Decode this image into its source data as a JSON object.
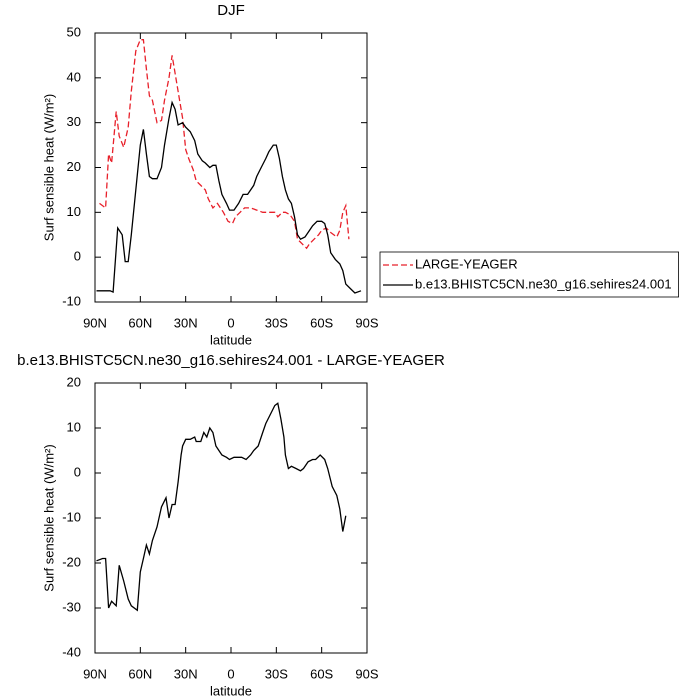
{
  "chart_data": [
    {
      "type": "line",
      "title": "DJF",
      "xlabel": "latitude",
      "ylabel": "Surf sensible heat (W/m²)",
      "xlim": [
        90,
        -90
      ],
      "xticks": [
        {
          "value": 90,
          "label": "90N"
        },
        {
          "value": 60,
          "label": "60N"
        },
        {
          "value": 30,
          "label": "30N"
        },
        0,
        {
          "value": -30,
          "label": "30S"
        },
        {
          "value": -60,
          "label": "60S"
        },
        {
          "value": -90,
          "label": "90S"
        }
      ],
      "ylim": [
        -10,
        50
      ],
      "yticks": [
        -10,
        0,
        10,
        20,
        30,
        40,
        50
      ],
      "legend": "right",
      "series": [
        {
          "name": "LARGE-YEAGER",
          "color": "#e8202a",
          "linestyle": "dashed",
          "x": [
            87,
            83,
            81,
            79,
            76,
            74,
            71,
            68,
            66,
            63,
            60,
            58,
            56,
            54,
            52,
            49,
            46,
            44,
            41,
            39,
            37,
            35,
            32,
            30,
            28,
            25,
            23,
            20,
            17,
            15,
            12,
            9,
            7,
            5,
            2,
            -1,
            -3,
            -6,
            -9,
            -13,
            -17,
            -21,
            -25,
            -29,
            -31,
            -34,
            -36,
            -39,
            -42,
            -44,
            -47,
            -50,
            -52,
            -55,
            -58,
            -60,
            -63,
            -66,
            -70,
            -72,
            -74,
            -76,
            -78
          ],
          "values": [
            12,
            11,
            23,
            21,
            32.5,
            27,
            24.5,
            29,
            37,
            46,
            48.5,
            48.5,
            42,
            36,
            35,
            30,
            30.5,
            35,
            40,
            45,
            41,
            37,
            31,
            24,
            22,
            19.5,
            17,
            16,
            15,
            13,
            11,
            12,
            11,
            10,
            8,
            7.5,
            9,
            10,
            11,
            11,
            10.5,
            10,
            10,
            10,
            9,
            10,
            10,
            9.5,
            8,
            4,
            3,
            2,
            3,
            4,
            5,
            6,
            6.5,
            5.5,
            4.5,
            6,
            10,
            11.5,
            4
          ]
        },
        {
          "name": "b.e13.BHISTC5CN.ne30_g16.sehires24.001",
          "color": "#000000",
          "linestyle": "solid",
          "x": [
            89,
            80,
            78,
            75,
            72,
            70,
            68,
            66,
            63,
            60,
            58,
            56,
            54,
            52,
            49,
            46,
            44,
            41,
            39,
            37,
            35,
            32,
            30,
            27,
            24,
            22,
            19,
            17,
            14,
            12,
            10,
            8,
            6,
            3,
            1,
            -2,
            -5,
            -8,
            -11,
            -15,
            -17,
            -20,
            -23,
            -25,
            -28,
            -30,
            -32,
            -34,
            -36,
            -38,
            -40,
            -42,
            -44,
            -46,
            -49,
            -52,
            -54,
            -57,
            -60,
            -62,
            -64,
            -66,
            -69,
            -72,
            -74,
            -76,
            -79,
            -82,
            -86
          ],
          "values": [
            -7.5,
            -7.5,
            -7.8,
            6.5,
            5,
            -1,
            -1,
            5,
            15,
            25,
            28.5,
            23,
            18,
            17.5,
            17.5,
            20,
            25,
            31,
            34.5,
            33,
            29.5,
            30,
            29,
            28,
            26,
            23,
            21.5,
            21,
            20,
            20.5,
            20.5,
            17,
            14,
            12,
            10.5,
            10.5,
            12,
            14,
            14,
            16,
            18,
            20,
            22,
            23.5,
            25,
            25,
            22,
            18,
            15,
            13,
            12,
            9,
            5,
            4,
            4.5,
            6,
            7,
            8,
            8,
            7.5,
            5,
            1,
            -0.5,
            -1.5,
            -3,
            -6,
            -7,
            -8,
            -7.5
          ]
        }
      ]
    },
    {
      "type": "line",
      "title": "b.e13.BHISTC5CN.ne30_g16.sehires24.001 - LARGE-YEAGER",
      "xlabel": "latitude",
      "ylabel": "Surf sensible heat (W/m²)",
      "xlim": [
        90,
        -90
      ],
      "xticks": [
        {
          "value": 90,
          "label": "90N"
        },
        {
          "value": 60,
          "label": "60N"
        },
        {
          "value": 30,
          "label": "30N"
        },
        0,
        {
          "value": -30,
          "label": "30S"
        },
        {
          "value": -60,
          "label": "60S"
        },
        {
          "value": -90,
          "label": "90S"
        }
      ],
      "ylim": [
        -40,
        20
      ],
      "yticks": [
        -40,
        -30,
        -20,
        -10,
        0,
        10,
        20
      ],
      "series": [
        {
          "color": "#000000",
          "linestyle": "solid",
          "x": [
            89,
            85,
            83,
            81,
            79,
            76,
            74,
            71,
            68,
            66,
            62,
            60,
            58,
            56,
            54,
            52,
            49,
            46,
            43,
            41,
            39,
            37,
            35,
            33,
            32,
            30,
            27,
            24,
            23,
            20,
            18,
            16,
            14,
            12,
            10,
            8,
            6,
            3,
            1,
            -2,
            -5,
            -7,
            -10,
            -13,
            -15,
            -18,
            -21,
            -23,
            -26,
            -29,
            -31,
            -33,
            -35,
            -36,
            -38,
            -40,
            -43,
            -46,
            -48,
            -51,
            -54,
            -56,
            -59,
            -62,
            -64,
            -67,
            -70,
            -72,
            -74,
            -76
          ],
          "values": [
            -19.5,
            -19,
            -19,
            -30,
            -28.5,
            -29.5,
            -20.5,
            -24,
            -28,
            -29.5,
            -30.5,
            -22,
            -19,
            -16,
            -18,
            -15,
            -12,
            -7.5,
            -5.5,
            -10,
            -7,
            -7,
            -2,
            4,
            6,
            7.5,
            7.5,
            8,
            7,
            7,
            9,
            8,
            10,
            9,
            6,
            5,
            4,
            3.5,
            3,
            3.5,
            3.5,
            3.5,
            3,
            4,
            5,
            6,
            9,
            11,
            13,
            15,
            15.5,
            12,
            8,
            4,
            1,
            1.5,
            1,
            0.5,
            1,
            2.5,
            3,
            3,
            4,
            3,
            1,
            -3,
            -5,
            -8,
            -13,
            -9.5
          ]
        }
      ]
    }
  ]
}
